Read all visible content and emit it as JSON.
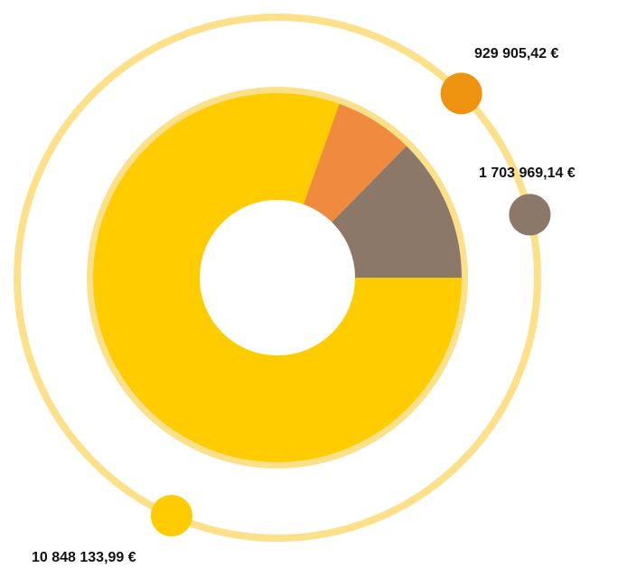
{
  "chart_data": {
    "type": "pie",
    "donut": true,
    "values": [
      10848133.99,
      929905.42,
      1703969.14
    ],
    "value_labels": [
      "10 848 133,99 €",
      "929 905,42 €",
      "1 703 969,14 €"
    ],
    "colors": [
      "#ffcc00",
      "#f08a3e",
      "#8b7868"
    ],
    "dot_colors": [
      "#ffcc00",
      "#ee9310",
      "#8b7868"
    ],
    "ring_color": "#fde08a"
  }
}
